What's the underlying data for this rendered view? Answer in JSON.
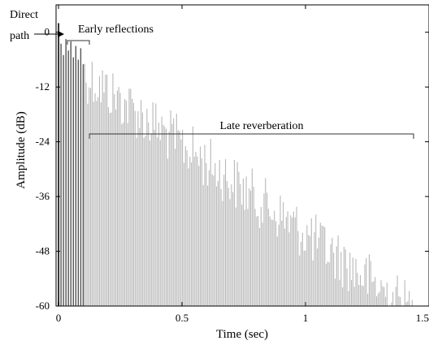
{
  "chart_data": {
    "type": "bar",
    "xlabel": "Time (sec)",
    "ylabel": "Amplitude (dB)",
    "xlim": [
      -0.01,
      1.5
    ],
    "ylim": [
      -60,
      6
    ],
    "x_ticks": [
      "0",
      "0.5",
      "1",
      "1.5"
    ],
    "x_tick_values": [
      0,
      0.5,
      1,
      1.5
    ],
    "y_ticks": [
      "0",
      "-12",
      "-24",
      "-36",
      "-48",
      "-60"
    ],
    "y_tick_values": [
      0,
      -12,
      -24,
      -36,
      -48,
      -60
    ],
    "grid": false,
    "colors": {
      "early": "#555555",
      "late": "#b8b8b8",
      "axis": "#000000",
      "annotation": "#333333"
    },
    "direct_path": {
      "time": 0.0,
      "level": 2.0
    },
    "early_reflections": [
      {
        "time": 0.01,
        "level": -2.5
      },
      {
        "time": 0.02,
        "level": -5.0
      },
      {
        "time": 0.03,
        "level": -1.5
      },
      {
        "time": 0.04,
        "level": -4.0
      },
      {
        "time": 0.05,
        "level": -2.0
      },
      {
        "time": 0.06,
        "level": -5.5
      },
      {
        "time": 0.07,
        "level": -3.0
      },
      {
        "time": 0.08,
        "level": -6.0
      },
      {
        "time": 0.09,
        "level": -3.5
      },
      {
        "time": 0.1,
        "level": -7.0
      }
    ],
    "late_reverberation": {
      "start_time": 0.1,
      "end_time": 1.48,
      "start_level": -6,
      "end_level": -60,
      "spacing": 0.006
    },
    "annotations": {
      "direct_path_line1": "Direct",
      "direct_path_line2": "path",
      "early_reflections": "Early reflections",
      "late_reverberation": "Late reverberation"
    }
  }
}
